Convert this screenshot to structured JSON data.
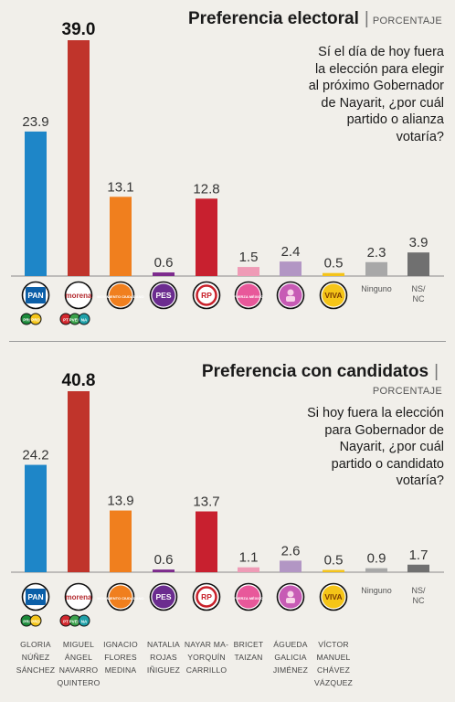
{
  "panel1": {
    "title": "Preferencia electoral",
    "unit": "PORCENTAJE",
    "question": [
      "Sí el día de hoy fuera",
      "la elección para elegir",
      "al próximo Gobernador",
      "de Nayarit, ¿por cuál",
      "partido o alianza",
      "votaría?"
    ]
  },
  "panel2": {
    "title": "Preferencia con candidatos",
    "unit": "PORCENTAJE",
    "question": [
      "Si hoy fuera la elección",
      "para Gobernador de",
      "Nayarit, ¿por cuál",
      "partido o candidato",
      "votaría?"
    ],
    "candidates": [
      [
        "GLORIA",
        "NÚÑEZ",
        "SÁNCHEZ"
      ],
      [
        "MIGUEL",
        "ÁNGEL",
        "NAVARRO",
        "QUINTERO"
      ],
      [
        "IGNACIO",
        "FLORES",
        "MEDINA"
      ],
      [
        "NATALIA",
        "ROJAS",
        "IÑIGUEZ"
      ],
      [
        "NAYAR MA-",
        "YORQUÍN",
        "CARRILLO"
      ],
      [
        "BRICET",
        "TAIZAN"
      ],
      [
        "ÁGUEDA",
        "GALICIA",
        "JIMÉNEZ"
      ],
      [
        "VÍCTOR",
        "MANUEL",
        "CHÁVEZ",
        "VÁZQUEZ"
      ]
    ]
  },
  "logos": [
    {
      "name": "pan",
      "text": "PAN",
      "color": "#0b5fa8",
      "sub": [
        "PRI",
        "PRD"
      ]
    },
    {
      "name": "morena",
      "text": "morena",
      "color": "#b3282d",
      "sub": [
        "PT",
        "PVEM",
        "NA"
      ]
    },
    {
      "name": "mc",
      "text": "MOVIMIENTO CIUDADANO",
      "color": "#f07f1e",
      "sub": []
    },
    {
      "name": "pes",
      "text": "PES",
      "color": "#6b2c8f",
      "sub": []
    },
    {
      "name": "rsp",
      "text": "RP",
      "color": "#c8202a",
      "sub": []
    },
    {
      "name": "fxm",
      "text": "FUERZA MÉXICO",
      "color": "#e8589a",
      "sub": []
    },
    {
      "name": "local",
      "text": "",
      "color": "#c75bb5",
      "sub": []
    },
    {
      "name": "viva",
      "text": "VIVA",
      "color": "#f5c518",
      "sub": []
    }
  ],
  "colors": [
    "#1e86c8",
    "#c0342b",
    "#f07f1e",
    "#7d2b8d",
    "#c8202f",
    "#ef9bb6",
    "#b296c4",
    "#f4c31a",
    "#a8a8a8",
    "#707070"
  ],
  "chart_data": [
    {
      "type": "bar",
      "title": "Preferencia electoral",
      "ylabel": "PORCENTAJE",
      "categories": [
        "PAN-PRI-PRD",
        "Morena-PT-PVEM-NA",
        "MC",
        "PES",
        "RSP",
        "Fuerza por México",
        "Local",
        "Viva",
        "Ninguno",
        "NS/NC"
      ],
      "values": [
        23.9,
        39.0,
        13.1,
        0.6,
        12.8,
        1.5,
        2.4,
        0.5,
        2.3,
        3.9
      ],
      "labels": [
        "23.9",
        "39.0",
        "13.1",
        "0.6",
        "12.8",
        "1.5",
        "2.4",
        "0.5",
        "2.3",
        "3.9"
      ],
      "text_categories": [
        "",
        "",
        "",
        "",
        "",
        "",
        "",
        "",
        "Ninguno",
        "NS/\nNC"
      ],
      "ylim": [
        0,
        40
      ]
    },
    {
      "type": "bar",
      "title": "Preferencia con candidatos",
      "ylabel": "PORCENTAJE",
      "categories": [
        "Gloria Núñez Sánchez",
        "Miguel Ángel Navarro Quintero",
        "Ignacio Flores Medina",
        "Natalia Rojas Iñiguez",
        "Nayar Mayorquín Carrillo",
        "Bricet Taizan",
        "Águeda Galicia Jiménez",
        "Víctor Manuel Chávez Vázquez",
        "Ninguno",
        "NS/NC"
      ],
      "values": [
        24.2,
        40.8,
        13.9,
        0.6,
        13.7,
        1.1,
        2.6,
        0.5,
        0.9,
        1.7
      ],
      "labels": [
        "24.2",
        "40.8",
        "13.9",
        "0.6",
        "13.7",
        "1.1",
        "2.6",
        "0.5",
        "0.9",
        "1.7"
      ],
      "text_categories": [
        "",
        "",
        "",
        "",
        "",
        "",
        "",
        "",
        "Ninguno",
        "NS/\nNC"
      ],
      "ylim": [
        0,
        42
      ]
    }
  ]
}
